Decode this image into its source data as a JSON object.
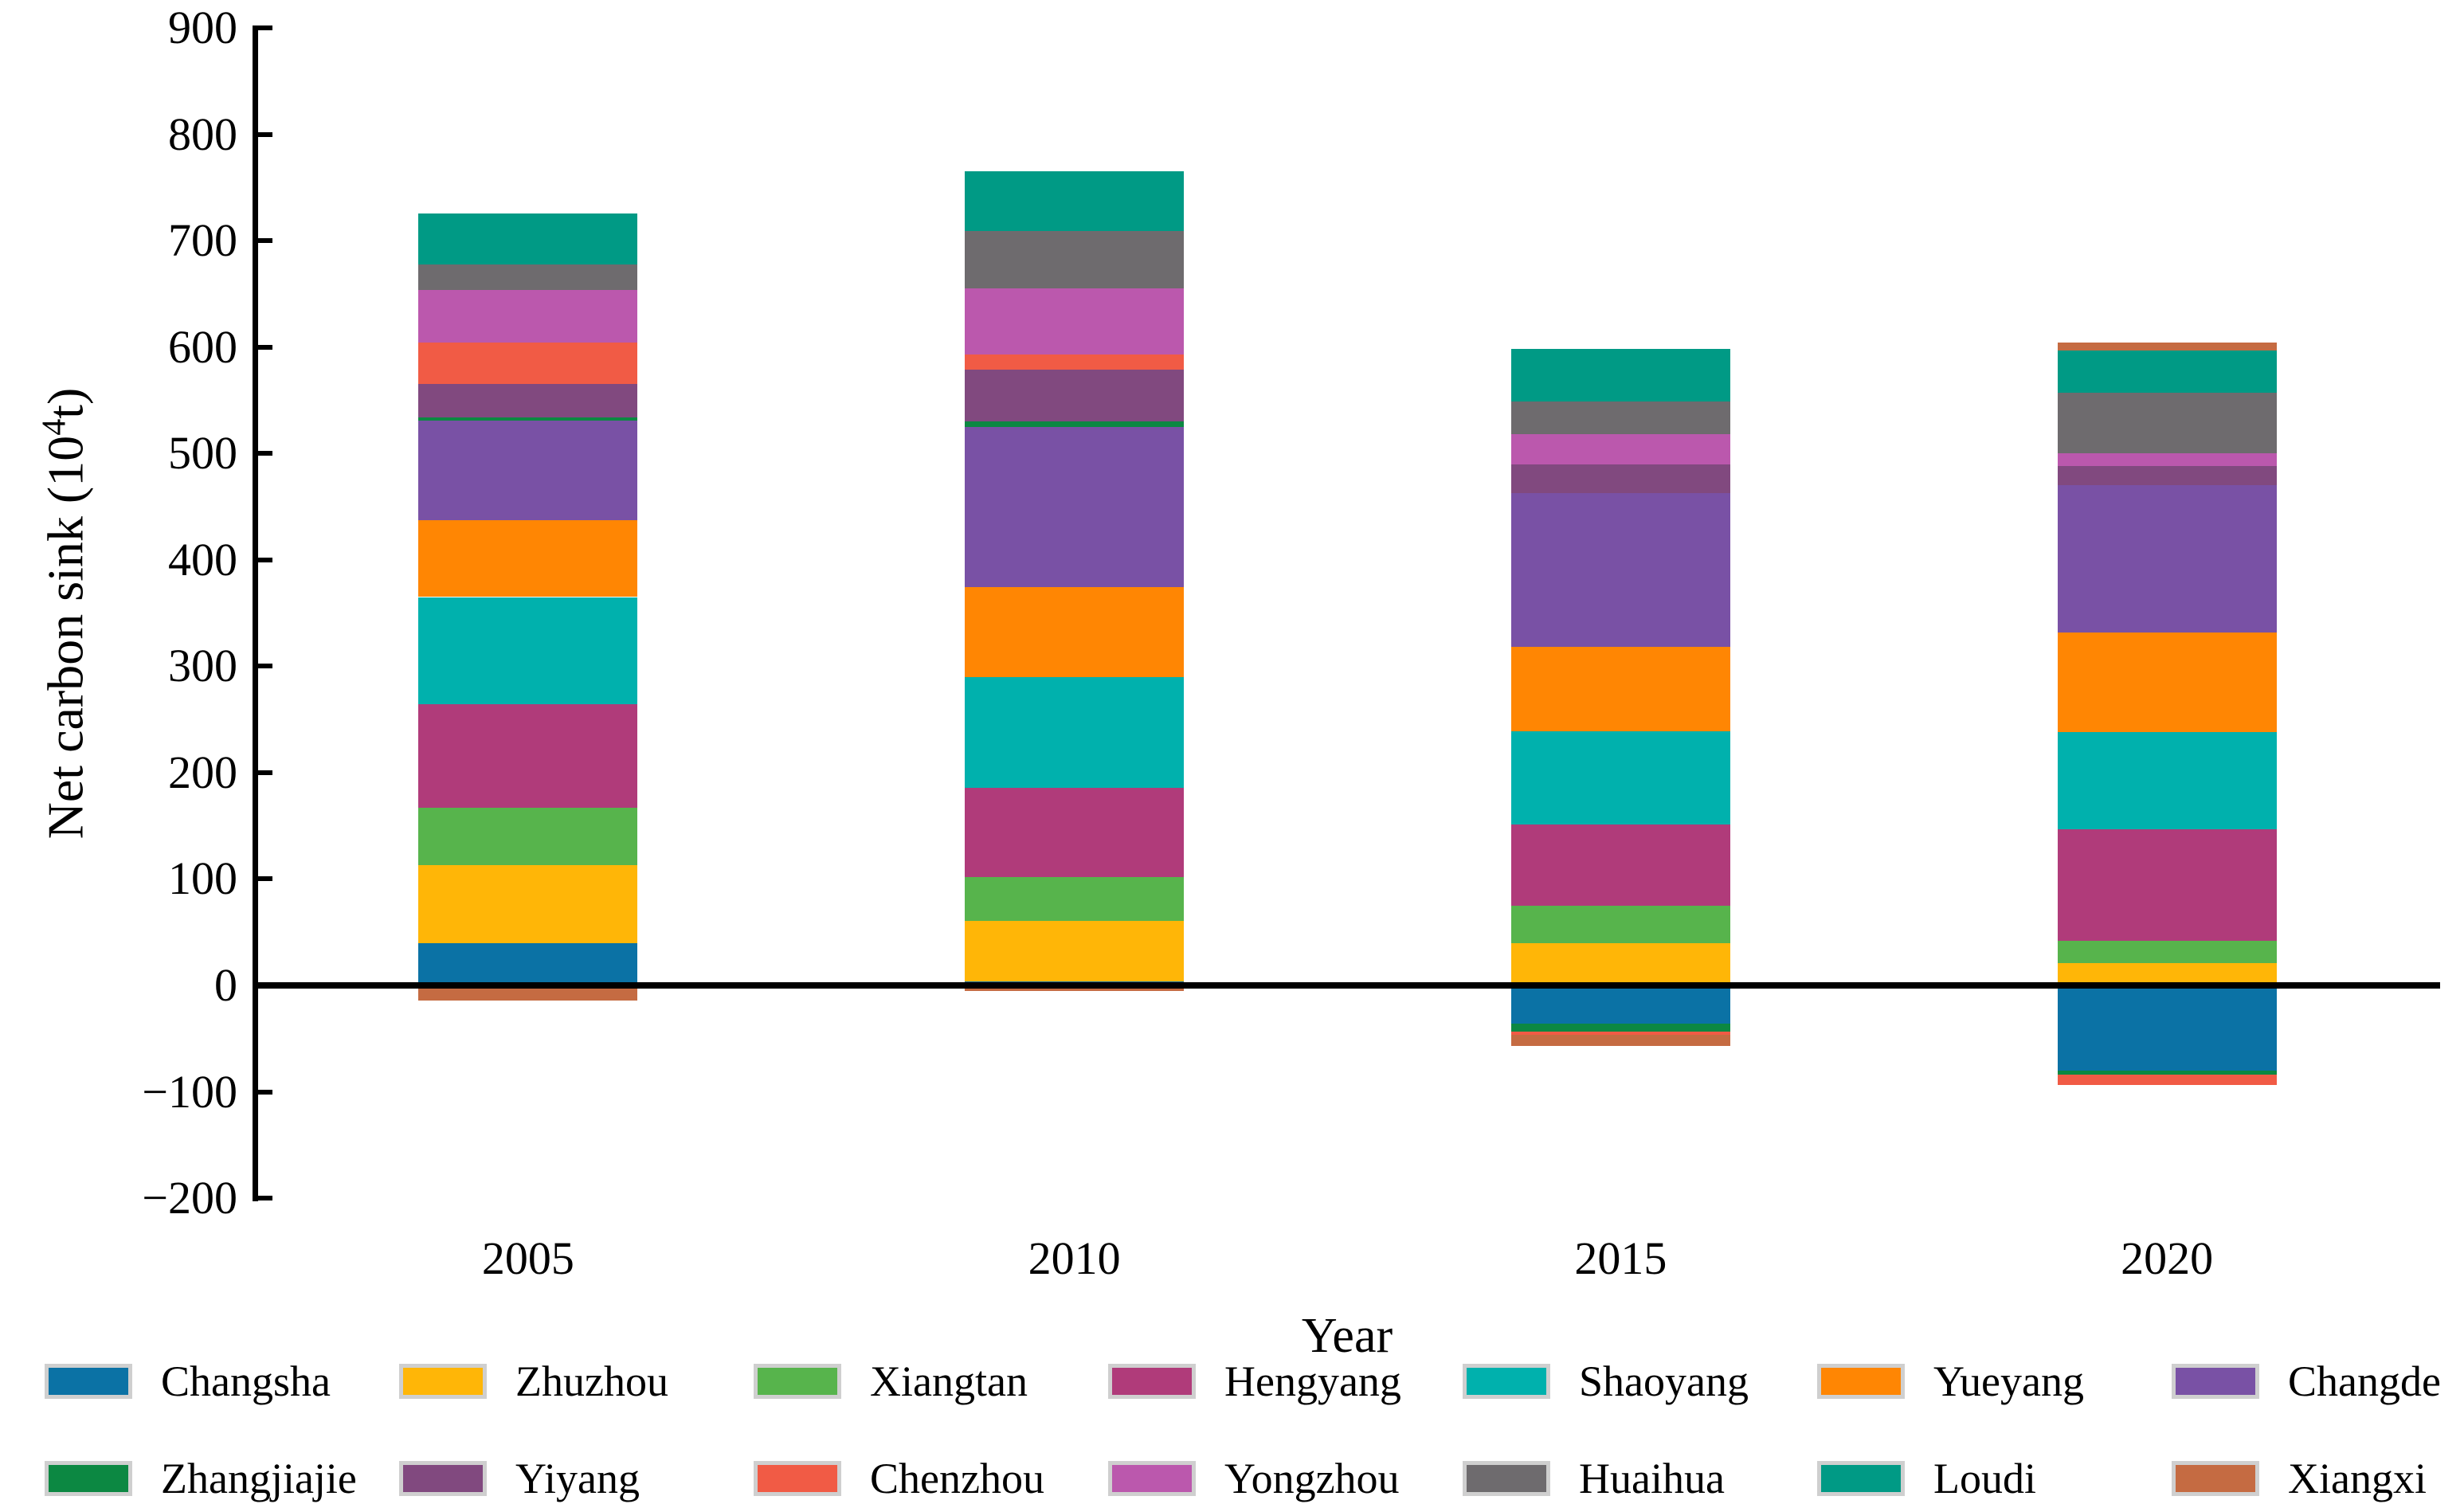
{
  "ylabel": {
    "pre": "Net carbon sink (10",
    "sup": "4",
    "post": "t)"
  },
  "chart_data": {
    "type": "bar",
    "stacked": true,
    "title": "",
    "xlabel": "Year",
    "ylabel": "Net carbon sink (10^4 t)",
    "categories": [
      "2005",
      "2010",
      "2015",
      "2020"
    ],
    "ylim": [
      -200,
      900
    ],
    "ytick_step": 100,
    "grid": false,
    "legend_position": "bottom, 2 rows x 7 columns",
    "series": [
      {
        "name": "Changsha",
        "color": "#0b72a5",
        "values": [
          40,
          4,
          -36,
          -80
        ]
      },
      {
        "name": "Zhuzhou",
        "color": "#ffb607",
        "values": [
          73,
          57,
          40,
          21
        ]
      },
      {
        "name": "Xiangtan",
        "color": "#57b44c",
        "values": [
          54,
          41,
          35,
          21
        ]
      },
      {
        "name": "Hengyang",
        "color": "#b03b7a",
        "values": [
          97,
          84,
          76,
          105
        ]
      },
      {
        "name": "Shaoyang",
        "color": "#00b1ad",
        "values": [
          101,
          104,
          88,
          91
        ]
      },
      {
        "name": "Yueyang",
        "color": "#ff8603",
        "values": [
          72,
          84,
          79,
          94
        ]
      },
      {
        "name": "Changde",
        "color": "#7951a5",
        "values": [
          94,
          151,
          145,
          138
        ]
      },
      {
        "name": "Zhangjiajie",
        "color": "#0c8842",
        "values": [
          2.5,
          5,
          -7.5,
          -3.5
        ]
      },
      {
        "name": "Yiyang",
        "color": "#81497f",
        "values": [
          32,
          49,
          27,
          18
        ]
      },
      {
        "name": "Chenzhou",
        "color": "#f15b45",
        "values": [
          39,
          14,
          -3,
          -10
        ]
      },
      {
        "name": "Yongzhou",
        "color": "#bb58ad",
        "values": [
          49,
          62,
          28,
          12
        ]
      },
      {
        "name": "Huaihua",
        "color": "#6e6b6e",
        "values": [
          24,
          54,
          31,
          57
        ]
      },
      {
        "name": "Loudi",
        "color": "#009a85",
        "values": [
          48,
          56,
          49,
          40
        ]
      },
      {
        "name": "Xiangxi",
        "color": "#c56b42",
        "values": [
          -14,
          -5,
          -10.5,
          7.5
        ]
      }
    ],
    "totals_net": [
      711.5,
      760,
      541,
      511
    ],
    "totals_positive": [
      725.5,
      765,
      598,
      604.5
    ]
  }
}
